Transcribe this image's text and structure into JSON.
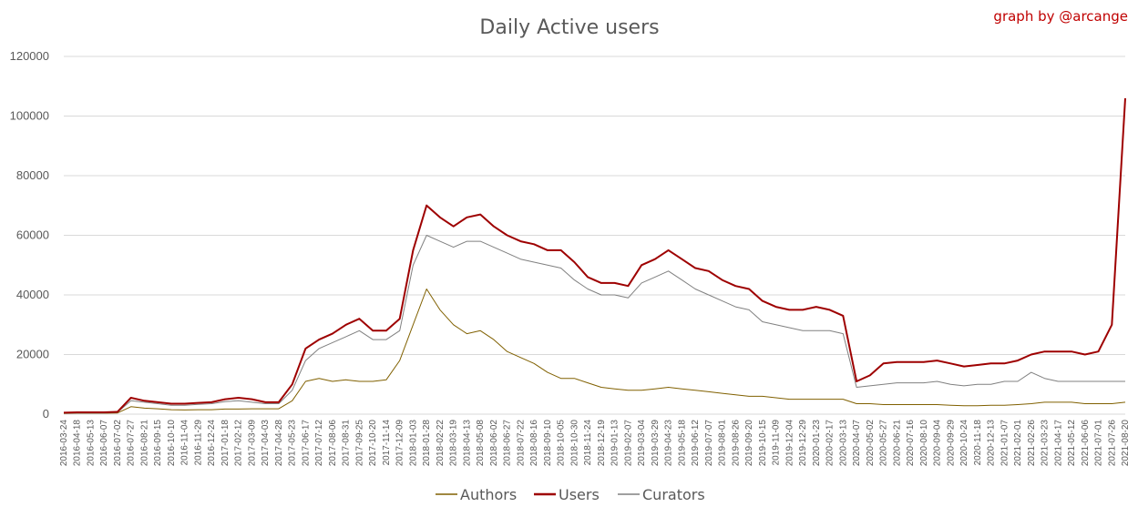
{
  "chart_data": {
    "type": "line",
    "title": "Daily Active users",
    "credit": "graph by @arcange",
    "xlabel": "",
    "ylabel": "",
    "ylim": [
      0,
      120000
    ],
    "y_ticks": [
      0,
      20000,
      40000,
      60000,
      80000,
      100000,
      120000
    ],
    "grid": "horizontal",
    "legend_position": "bottom",
    "x_tick_labels": [
      "2016-03-24",
      "2016-04-18",
      "2016-05-13",
      "2016-06-07",
      "2016-07-02",
      "2016-07-27",
      "2016-08-21",
      "2016-09-15",
      "2016-10-10",
      "2016-11-04",
      "2016-11-29",
      "2016-12-24",
      "2017-01-18",
      "2017-02-12",
      "2017-03-09",
      "2017-04-03",
      "2017-04-28",
      "2017-05-23",
      "2017-06-17",
      "2017-07-12",
      "2017-08-06",
      "2017-08-31",
      "2017-09-25",
      "2017-10-20",
      "2017-11-14",
      "2017-12-09",
      "2018-01-03",
      "2018-01-28",
      "2018-02-22",
      "2018-03-19",
      "2018-04-13",
      "2018-05-08",
      "2018-06-02",
      "2018-06-27",
      "2018-07-22",
      "2018-08-16",
      "2018-09-10",
      "2018-10-05",
      "2018-10-30",
      "2018-11-24",
      "2018-12-19",
      "2019-01-13",
      "2019-02-07",
      "2019-03-04",
      "2019-03-29",
      "2019-04-23",
      "2019-05-18",
      "2019-06-12",
      "2019-07-07",
      "2019-08-01",
      "2019-08-26",
      "2019-09-20",
      "2019-10-15",
      "2019-11-09",
      "2019-12-04",
      "2019-12-29",
      "2020-01-23",
      "2020-02-17",
      "2020-03-13",
      "2020-04-07",
      "2020-05-02",
      "2020-05-27",
      "2020-06-21",
      "2020-07-16",
      "2020-08-10",
      "2020-09-04",
      "2020-09-29",
      "2020-10-24",
      "2020-11-18",
      "2020-12-13",
      "2021-01-07",
      "2021-02-01",
      "2021-02-26",
      "2021-03-23",
      "2021-04-17",
      "2021-05-12",
      "2021-06-06",
      "2021-07-01",
      "2021-07-26",
      "2021-08-20"
    ],
    "series": [
      {
        "name": "Authors",
        "color": "#806000",
        "values": [
          200,
          300,
          300,
          300,
          400,
          2500,
          2000,
          1800,
          1500,
          1400,
          1500,
          1500,
          1700,
          1700,
          1800,
          1800,
          1800,
          4500,
          11000,
          12000,
          11000,
          11500,
          11000,
          11000,
          11500,
          18000,
          30000,
          42000,
          35000,
          30000,
          27000,
          28000,
          25000,
          21000,
          19000,
          17000,
          14000,
          12000,
          12000,
          10500,
          9000,
          8500,
          8000,
          8000,
          8500,
          9000,
          8500,
          8000,
          7500,
          7000,
          6500,
          6000,
          6000,
          5500,
          5000,
          5000,
          5000,
          5000,
          5000,
          3500,
          3500,
          3200,
          3200,
          3200,
          3200,
          3200,
          3000,
          2800,
          2800,
          3000,
          3000,
          3200,
          3500,
          4000,
          4000,
          4000,
          3500,
          3500,
          3500,
          4000
        ]
      },
      {
        "name": "Users",
        "color": "#9e0000",
        "values": [
          500,
          600,
          600,
          600,
          800,
          5500,
          4500,
          4000,
          3500,
          3500,
          3800,
          4000,
          5000,
          5500,
          5000,
          4000,
          4000,
          10000,
          22000,
          25000,
          27000,
          30000,
          32000,
          28000,
          28000,
          32000,
          55000,
          70000,
          66000,
          63000,
          66000,
          67000,
          63000,
          60000,
          58000,
          57000,
          55000,
          55000,
          51000,
          46000,
          44000,
          44000,
          43000,
          50000,
          52000,
          55000,
          52000,
          49000,
          48000,
          45000,
          43000,
          42000,
          38000,
          36000,
          35000,
          35000,
          36000,
          35000,
          33000,
          11000,
          13000,
          17000,
          17500,
          17500,
          17500,
          18000,
          17000,
          16000,
          16500,
          17000,
          17000,
          18000,
          20000,
          21000,
          21000,
          21000,
          20000,
          21000,
          30000,
          106000
        ]
      },
      {
        "name": "Curators",
        "color": "#808080",
        "values": [
          300,
          400,
          400,
          400,
          600,
          4500,
          4000,
          3500,
          3000,
          3000,
          3300,
          3500,
          4200,
          4500,
          4000,
          3500,
          3500,
          8000,
          18000,
          22000,
          24000,
          26000,
          28000,
          25000,
          25000,
          28000,
          50000,
          60000,
          58000,
          56000,
          58000,
          58000,
          56000,
          54000,
          52000,
          51000,
          50000,
          49000,
          45000,
          42000,
          40000,
          40000,
          39000,
          44000,
          46000,
          48000,
          45000,
          42000,
          40000,
          38000,
          36000,
          35000,
          31000,
          30000,
          29000,
          28000,
          28000,
          28000,
          27000,
          9000,
          9500,
          10000,
          10500,
          10500,
          10500,
          11000,
          10000,
          9500,
          10000,
          10000,
          11000,
          11000,
          14000,
          12000,
          11000,
          11000,
          11000,
          11000,
          11000,
          11000
        ]
      }
    ]
  }
}
